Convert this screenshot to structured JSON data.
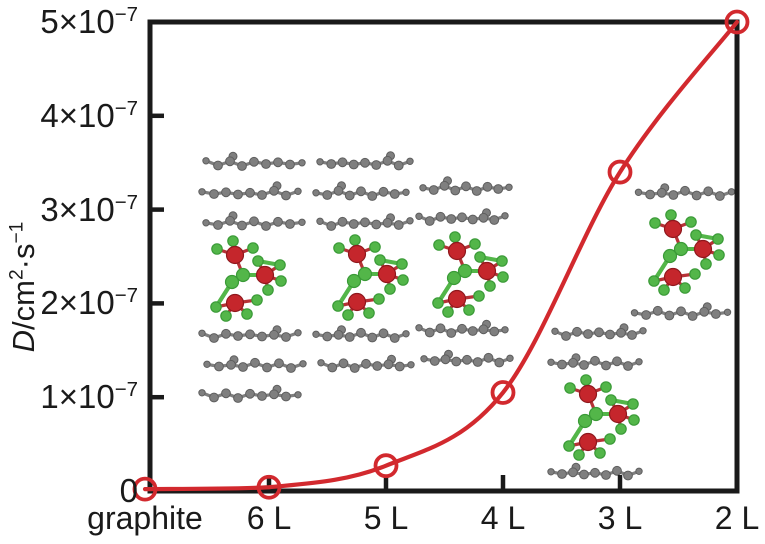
{
  "figure": {
    "background": "#ffffff",
    "axis_color": "#1a1a1a",
    "text_color": "#1a1a1a"
  },
  "y_axis": {
    "title_parts": {
      "symbol": "D",
      "slash_unit": "/cm",
      "sup1": "2",
      "mid": "·s",
      "sup2": "−1"
    },
    "ticks": [
      {
        "mantissa": "5×10",
        "exp": "−7",
        "value_e7": 5
      },
      {
        "mantissa": "4×10",
        "exp": "−7",
        "value_e7": 4
      },
      {
        "mantissa": "3×10",
        "exp": "−7",
        "value_e7": 3
      },
      {
        "mantissa": "2×10",
        "exp": "−7",
        "value_e7": 2
      },
      {
        "mantissa": "1×10",
        "exp": "−7",
        "value_e7": 1
      },
      {
        "mantissa": "0",
        "exp": "",
        "value_e7": 0
      }
    ]
  },
  "x_axis": {
    "categories": [
      "graphite",
      "6 L",
      "5 L",
      "4 L",
      "3 L",
      "2 L"
    ]
  },
  "chart_data": {
    "type": "line",
    "title": "",
    "xlabel": "",
    "ylabel": "D/cm2·s−1",
    "categories": [
      "graphite",
      "6 L",
      "5 L",
      "4 L",
      "3 L",
      "2 L"
    ],
    "values_e7": [
      0.02,
      0.04,
      0.27,
      1.05,
      3.4,
      5.0
    ],
    "values_cm2_per_s": [
      2e-09,
      4e-09,
      2.7e-08,
      1.05e-07,
      3.4e-07,
      5e-07
    ],
    "ylim_e7": [
      0,
      5
    ],
    "grid": false,
    "legend": null,
    "line_color": "#d2292e",
    "marker": "open-circle",
    "marker_color": "#d2292e"
  },
  "insets": {
    "carbon_color": "#7f7f7f",
    "carbon_stroke": "#5e5e5e",
    "red_atom_color": "#c5262c",
    "red_atom_stroke": "#8f181d",
    "green_atom_color": "#53b649",
    "green_atom_stroke": "#3a9a37",
    "items": [
      {
        "name": "stack-6-layers",
        "label": "6 L",
        "layers_above": 3,
        "layers_below": 3,
        "molecule": true
      },
      {
        "name": "stack-5-layers",
        "label": "5 L",
        "layers_above": 3,
        "layers_below": 2,
        "molecule": true
      },
      {
        "name": "stack-4-layers",
        "label": "4 L",
        "layers_above": 2,
        "layers_below": 2,
        "molecule": true
      },
      {
        "name": "stack-3-layers",
        "label": "3 L",
        "layers_above": 2,
        "layers_below": 1,
        "molecule": true
      },
      {
        "name": "stack-2-layers",
        "label": "2 L",
        "layers_above": 1,
        "layers_below": 1,
        "molecule": true
      }
    ]
  }
}
